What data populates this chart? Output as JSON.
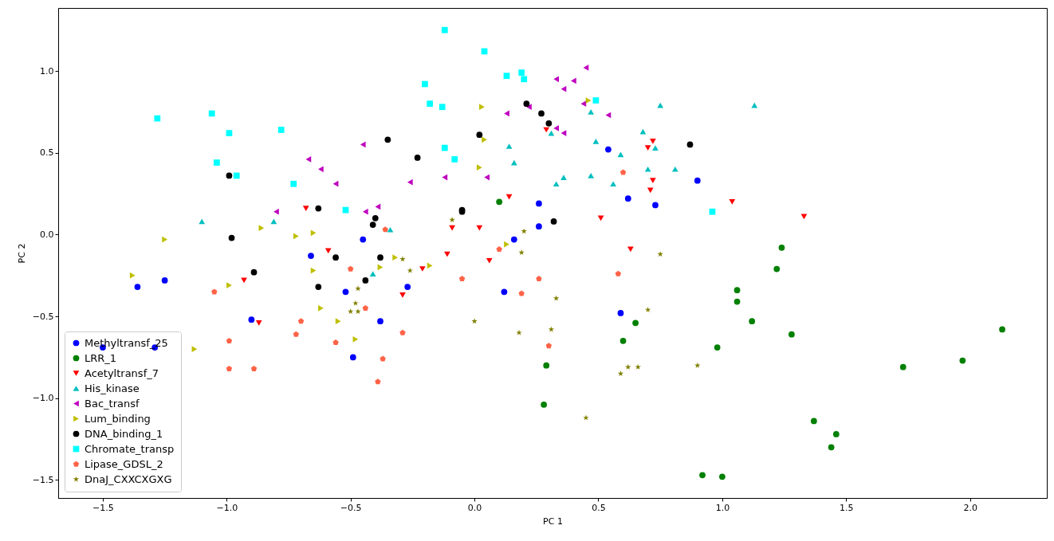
{
  "chart_data": {
    "type": "scatter",
    "xlabel": "PC 1",
    "ylabel": "PC 2",
    "xlim": [
      -1.68,
      2.31
    ],
    "ylim": [
      -1.61,
      1.385
    ],
    "xticks": [
      {
        "value": -1.5,
        "label": "−1.5"
      },
      {
        "value": -1.0,
        "label": "−1.0"
      },
      {
        "value": -0.5,
        "label": "−0.5"
      },
      {
        "value": 0,
        "label": "0.0"
      },
      {
        "value": 0.5,
        "label": "0.5"
      },
      {
        "value": 1,
        "label": "1.0"
      },
      {
        "value": 1.5,
        "label": "1.5"
      },
      {
        "value": 2,
        "label": "2.0"
      }
    ],
    "yticks": [
      {
        "value": -1.5,
        "label": "−1.5"
      },
      {
        "value": -1.0,
        "label": "−1.0"
      },
      {
        "value": -0.5,
        "label": "−0.5"
      },
      {
        "value": 0,
        "label": "0.0"
      },
      {
        "value": 0.5,
        "label": "0.5"
      },
      {
        "value": 1,
        "label": "1.0"
      }
    ],
    "grid": false,
    "legend": "bottom left",
    "series": [
      {
        "name": "Methyltransf_25",
        "color": "#0000ff",
        "marker": "circle",
        "x": [
          -1.36,
          -1.25,
          -1.5,
          -1.29,
          -0.66,
          -0.9,
          -0.52,
          -0.38,
          -0.49,
          -0.45,
          0.54,
          0.9,
          0.62,
          0.73,
          0.26,
          0.26,
          0.16,
          -0.27,
          0.12,
          0.59
        ],
        "values": [
          -0.32,
          -0.28,
          -0.69,
          -0.69,
          -0.13,
          -0.52,
          -0.35,
          -0.53,
          -0.75,
          -0.03,
          0.52,
          0.33,
          0.22,
          0.18,
          0.19,
          0.05,
          -0.03,
          -0.32,
          -0.35,
          -0.48
        ]
      },
      {
        "name": "LRR_1",
        "color": "#008000",
        "marker": "circle",
        "x": [
          0.1,
          1.24,
          1.22,
          1.06,
          1.06,
          1.12,
          1.28,
          0.98,
          1.0,
          1.37,
          1.46,
          1.44,
          1.73,
          1.97,
          2.13,
          0.65,
          0.6,
          0.29,
          0.28,
          0.92
        ],
        "values": [
          0.2,
          -0.08,
          -0.21,
          -0.34,
          -0.41,
          -0.53,
          -0.61,
          -0.69,
          -1.48,
          -1.14,
          -1.22,
          -1.3,
          -0.81,
          -0.77,
          -0.58,
          -0.54,
          -0.65,
          -0.8,
          -1.04,
          -1.47
        ]
      },
      {
        "name": "Acetyltransf_7",
        "color": "#ff0000",
        "marker": "triangle-down",
        "x": [
          -0.68,
          -0.59,
          -0.93,
          -0.87,
          0.29,
          0.72,
          0.7,
          0.72,
          0.71,
          0.14,
          0.51,
          -0.09,
          0.02,
          0.63,
          -0.11,
          1.04,
          1.33,
          0.06,
          -0.21,
          -0.29
        ],
        "values": [
          0.16,
          -0.1,
          -0.28,
          -0.54,
          0.64,
          0.57,
          0.53,
          0.33,
          0.27,
          0.23,
          0.1,
          0.04,
          0.04,
          -0.09,
          -0.12,
          0.2,
          0.11,
          -0.16,
          -0.21,
          -0.37
        ]
      },
      {
        "name": "His_kinase",
        "color": "#00bfbf",
        "marker": "triangle-up",
        "x": [
          -1.1,
          -0.81,
          -0.34,
          -0.41,
          0.75,
          0.47,
          0.31,
          0.68,
          0.49,
          0.73,
          0.14,
          0.59,
          0.16,
          0.7,
          0.81,
          0.36,
          0.47,
          0.33,
          0.56,
          1.13
        ],
        "values": [
          0.08,
          0.08,
          0.03,
          -0.24,
          0.79,
          0.75,
          0.62,
          0.63,
          0.57,
          0.53,
          0.54,
          0.49,
          0.44,
          0.4,
          0.4,
          0.35,
          0.36,
          0.31,
          0.31,
          0.79
        ]
      },
      {
        "name": "Bac_transf",
        "color": "#bf00bf",
        "marker": "triangle-left",
        "x": [
          -0.45,
          -0.67,
          -0.62,
          -0.56,
          -0.8,
          -0.44,
          -0.39,
          0.45,
          0.33,
          0.4,
          0.36,
          0.44,
          0.22,
          0.13,
          0.54,
          0.33,
          0.36,
          -0.26,
          -0.12,
          0.05
        ],
        "values": [
          0.55,
          0.46,
          0.4,
          0.31,
          0.14,
          0.14,
          0.17,
          1.02,
          0.95,
          0.94,
          0.89,
          0.8,
          0.78,
          0.74,
          0.73,
          0.65,
          0.62,
          0.32,
          0.35,
          0.35
        ]
      },
      {
        "name": "Lum_binding",
        "color": "#bfbf00",
        "marker": "triangle-right",
        "x": [
          -1.38,
          -0.99,
          -0.65,
          -0.62,
          -0.55,
          -0.48,
          -0.38,
          -1.13,
          -1.25,
          -0.86,
          -0.72,
          -0.65,
          0.03,
          0.04,
          0.02,
          0.46,
          0.13,
          -0.32,
          -0.18
        ],
        "values": [
          -0.25,
          -0.31,
          -0.22,
          -0.45,
          -0.53,
          -0.64,
          -0.2,
          -0.7,
          -0.03,
          0.04,
          -0.01,
          0.01,
          0.78,
          0.58,
          0.41,
          0.82,
          -0.06,
          -0.14,
          -0.19
        ]
      },
      {
        "name": "DNA_binding_1",
        "color": "#000000",
        "marker": "circle",
        "x": [
          -0.35,
          -0.99,
          -0.63,
          -0.4,
          -0.41,
          -0.98,
          -0.89,
          -0.56,
          -0.38,
          -0.63,
          -0.44,
          0.21,
          0.27,
          0.3,
          0.02,
          -0.23,
          0.87,
          -0.05,
          -0.05,
          0.32
        ],
        "values": [
          0.58,
          0.36,
          0.16,
          0.1,
          0.06,
          -0.02,
          -0.23,
          -0.14,
          -0.14,
          -0.32,
          -0.28,
          0.8,
          0.74,
          0.68,
          0.61,
          0.47,
          0.55,
          0.15,
          0.14,
          0.08
        ]
      },
      {
        "name": "Chromate_transp",
        "color": "#00ffff",
        "marker": "square",
        "x": [
          -1.28,
          -1.06,
          -0.99,
          -0.78,
          -1.04,
          -0.96,
          -0.73,
          -0.52,
          -0.12,
          0.04,
          -0.2,
          0.13,
          0.19,
          0.2,
          -0.18,
          -0.13,
          0.49,
          -0.12,
          -0.08,
          0.96
        ],
        "values": [
          0.71,
          0.74,
          0.62,
          0.64,
          0.44,
          0.36,
          0.31,
          0.15,
          1.25,
          1.12,
          0.92,
          0.97,
          0.99,
          0.95,
          0.8,
          0.78,
          0.82,
          0.53,
          0.46,
          0.14
        ]
      },
      {
        "name": "Lipase_GDSL_2",
        "color": "#ff6347",
        "x": [
          -1.05,
          -0.99,
          -0.99,
          -0.89,
          -0.72,
          -0.7,
          -0.5,
          -0.56,
          -0.44,
          -0.37,
          -0.39,
          -0.36,
          0.1,
          -0.05,
          0.26,
          0.19,
          0.58,
          -0.29,
          0.3,
          0.6
        ],
        "values": [
          -0.35,
          -0.65,
          -0.82,
          -0.82,
          -0.61,
          -0.53,
          -0.21,
          -0.66,
          -0.45,
          -0.76,
          -0.9,
          0.03,
          -0.09,
          -0.27,
          -0.27,
          -0.36,
          -0.24,
          -0.6,
          -0.68,
          0.38
        ]
      },
      {
        "name": "DnaJ_CXXCXGXG",
        "color": "#808000",
        "marker": "star",
        "x": [
          -0.47,
          -0.48,
          -0.5,
          -0.47,
          -0.09,
          0.2,
          -0.29,
          -0.26,
          0.19,
          0.75,
          0.33,
          0.7,
          0.0,
          0.18,
          0.31,
          0.59,
          0.62,
          0.66,
          0.9,
          0.45
        ],
        "values": [
          -0.33,
          -0.42,
          -0.47,
          -0.47,
          0.09,
          0.02,
          -0.15,
          -0.22,
          -0.11,
          -0.12,
          -0.39,
          -0.46,
          -0.53,
          -0.6,
          -0.58,
          -0.85,
          -0.81,
          -0.81,
          -0.8,
          -1.12
        ]
      }
    ]
  }
}
